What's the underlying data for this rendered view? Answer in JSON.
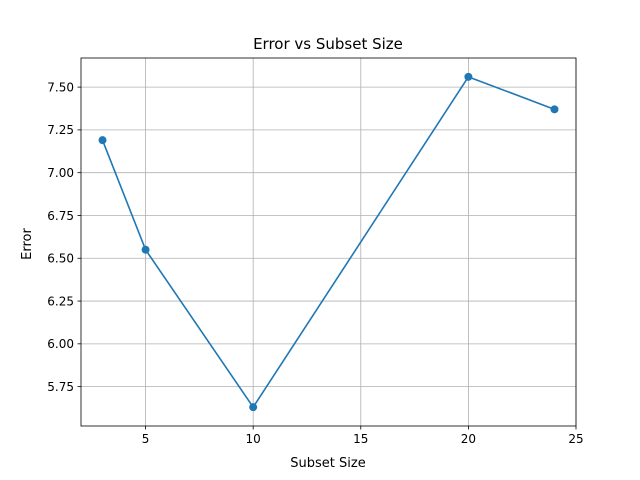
{
  "chart_data": {
    "type": "line",
    "title": "Error vs Subset Size",
    "xlabel": "Subset Size",
    "ylabel": "Error",
    "x": [
      3,
      5,
      10,
      20,
      24
    ],
    "series": [
      {
        "values": [
          7.19,
          6.55,
          5.63,
          7.56,
          7.37
        ],
        "color": "#1f77b4",
        "marker": "circle"
      }
    ],
    "xlim": [
      2.0,
      25.0
    ],
    "ylim": [
      5.52,
      7.67
    ],
    "xticks": [
      5,
      10,
      15,
      20,
      25
    ],
    "yticks": [
      5.75,
      6.0,
      6.25,
      6.5,
      6.75,
      7.0,
      7.25,
      7.5
    ],
    "ytick_labels": [
      "5.75",
      "6.00",
      "6.25",
      "6.50",
      "6.75",
      "7.00",
      "7.25",
      "7.50"
    ],
    "grid": true,
    "legend": "none"
  }
}
